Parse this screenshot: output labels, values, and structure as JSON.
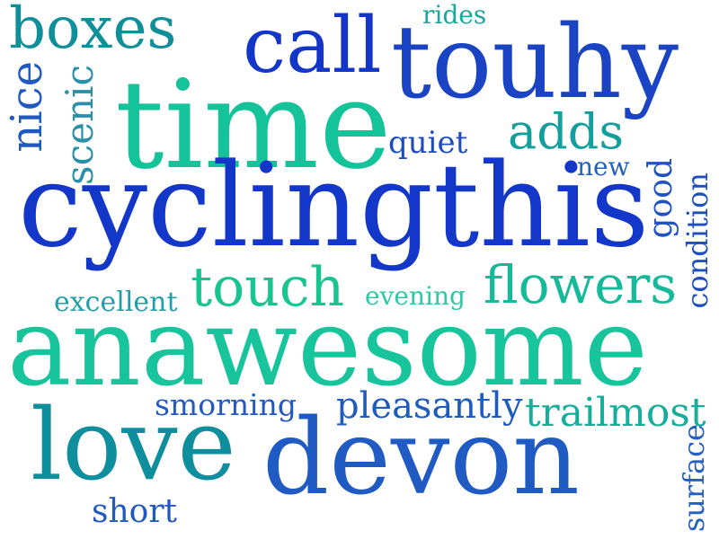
{
  "words": {
    "boxes": {
      "text": "boxes",
      "color": "#0f8f9a"
    },
    "rides": {
      "text": "rides",
      "color": "#19a7a0"
    },
    "call": {
      "text": "call",
      "color": "#1336c8"
    },
    "touhy": {
      "text": "touhy",
      "color": "#1a44c4"
    },
    "nice": {
      "text": "nice",
      "color": "#1f59bf"
    },
    "scenic": {
      "text": "scenic",
      "color": "#2a8fa9"
    },
    "time": {
      "text": "time",
      "color": "#15c39a"
    },
    "adds": {
      "text": "adds",
      "color": "#159e9e"
    },
    "quiet": {
      "text": "quiet",
      "color": "#1f4bbd"
    },
    "new": {
      "text": "new",
      "color": "#2260c2"
    },
    "good": {
      "text": "good",
      "color": "#1f52bf"
    },
    "condition": {
      "text": "condition",
      "color": "#1e4ec0"
    },
    "cyclingthis": {
      "text": "cyclingthis",
      "color": "#1237c9"
    },
    "touch": {
      "text": "touch",
      "color": "#18c48f"
    },
    "flowers": {
      "text": "flowers",
      "color": "#16b99a"
    },
    "excellent": {
      "text": "excellent",
      "color": "#1f9fa8"
    },
    "evening": {
      "text": "evening",
      "color": "#2dc9a6"
    },
    "anawesome": {
      "text": "anawesome",
      "color": "#17c49b"
    },
    "smorning": {
      "text": "smorning",
      "color": "#2659bf"
    },
    "pleasantly": {
      "text": "pleasantly",
      "color": "#1f5cbd"
    },
    "trailmost": {
      "text": "trailmost",
      "color": "#17ad9c"
    },
    "love": {
      "text": "love",
      "color": "#0f8e9d"
    },
    "devon": {
      "text": "devon",
      "color": "#1f5bc2"
    },
    "surface": {
      "text": "surface",
      "color": "#2460c0"
    },
    "short": {
      "text": "short",
      "color": "#2159c0"
    }
  }
}
